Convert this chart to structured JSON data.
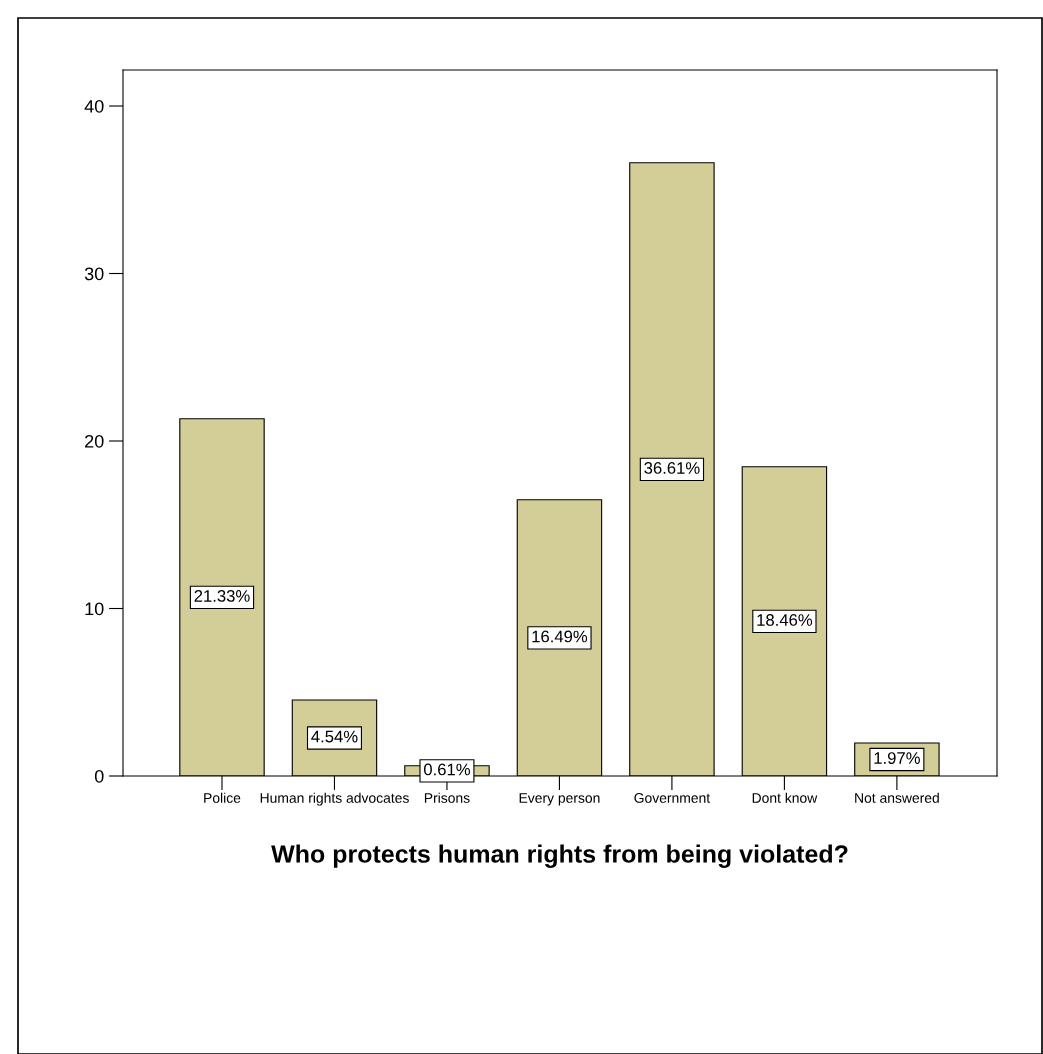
{
  "chart_data": {
    "type": "bar",
    "xlabel": "Who protects human rights from being violated?",
    "categories": [
      "Police",
      "Human rights advocates",
      "Prisons",
      "Every person",
      "Government",
      "Dont know",
      "Not answered"
    ],
    "values": [
      21.33,
      4.54,
      0.61,
      16.49,
      36.61,
      18.46,
      1.97
    ],
    "value_labels": [
      "21.33%",
      "4.54%",
      "0.61%",
      "16.49%",
      "36.61%",
      "18.46%",
      "1.97%"
    ],
    "color": "#d3ce97",
    "ylim": [
      0,
      42.15
    ],
    "yticks": [
      0,
      10,
      20,
      30,
      40
    ],
    "grid": false,
    "legend": false
  }
}
